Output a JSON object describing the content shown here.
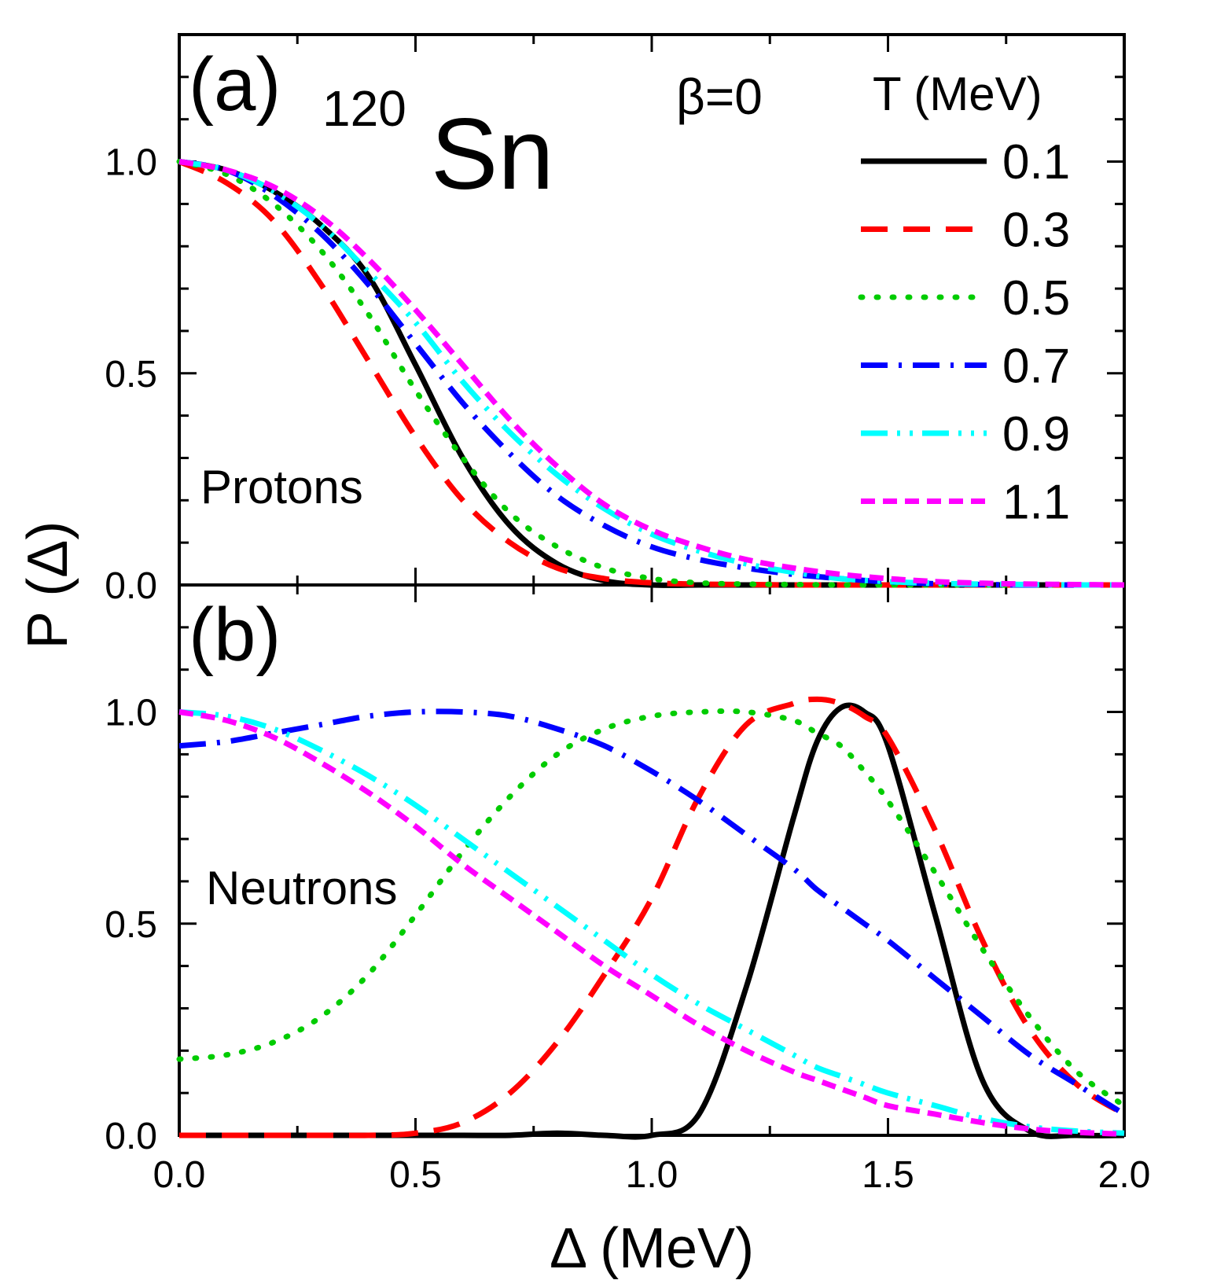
{
  "chart_data": [
    {
      "type": "line",
      "panel": "(a)",
      "label": "Protons",
      "nucleus_mass": "120",
      "nucleus_symbol": "Sn",
      "beta_label": "β=0",
      "legend_title": "T (MeV)",
      "xlim": [
        0.0,
        2.0
      ],
      "ylim": [
        0.0,
        1.3
      ],
      "yticks": [
        "0.0",
        "0.5",
        "1.0"
      ],
      "x": [
        0.0,
        0.1,
        0.2,
        0.3,
        0.4,
        0.5,
        0.6,
        0.7,
        0.8,
        0.9,
        1.0,
        1.1,
        1.2,
        1.3,
        1.4,
        1.5,
        1.6,
        1.7,
        1.8,
        1.9,
        2.0
      ],
      "series": [
        {
          "name": "0.1",
          "color": "#000000",
          "dash": "solid",
          "values": [
            1.0,
            0.98,
            0.93,
            0.85,
            0.73,
            0.52,
            0.3,
            0.14,
            0.05,
            0.01,
            0.0,
            0.0,
            0.0,
            0.0,
            0.0,
            0.0,
            0.0,
            0.0,
            0.0,
            0.0,
            0.0
          ]
        },
        {
          "name": "0.3",
          "color": "#ff0000",
          "dash": "dashed",
          "values": [
            1.0,
            0.95,
            0.86,
            0.71,
            0.53,
            0.35,
            0.2,
            0.1,
            0.04,
            0.015,
            0.005,
            0.002,
            0.001,
            0.0,
            0.0,
            0.0,
            0.0,
            0.0,
            0.0,
            0.0,
            0.0
          ]
        },
        {
          "name": "0.5",
          "color": "#00cc00",
          "dash": "dotted",
          "values": [
            1.0,
            0.97,
            0.9,
            0.79,
            0.64,
            0.46,
            0.3,
            0.17,
            0.09,
            0.04,
            0.015,
            0.005,
            0.002,
            0.001,
            0.0,
            0.0,
            0.0,
            0.0,
            0.0,
            0.0,
            0.0
          ]
        },
        {
          "name": "0.7",
          "color": "#0000ff",
          "dash": "dashdot",
          "values": [
            1.0,
            0.98,
            0.92,
            0.83,
            0.71,
            0.57,
            0.43,
            0.31,
            0.21,
            0.14,
            0.09,
            0.06,
            0.04,
            0.025,
            0.015,
            0.007,
            0.003,
            0.001,
            0.0,
            0.0,
            0.0
          ]
        },
        {
          "name": "0.9",
          "color": "#00ffff",
          "dash": "dashdotdot",
          "values": [
            1.0,
            0.98,
            0.93,
            0.85,
            0.74,
            0.62,
            0.48,
            0.36,
            0.26,
            0.18,
            0.12,
            0.08,
            0.05,
            0.03,
            0.015,
            0.008,
            0.004,
            0.002,
            0.001,
            0.0,
            0.0
          ]
        },
        {
          "name": "1.1",
          "color": "#ff00ff",
          "dash": "shortdash",
          "values": [
            1.0,
            0.98,
            0.94,
            0.87,
            0.77,
            0.65,
            0.52,
            0.39,
            0.28,
            0.19,
            0.13,
            0.09,
            0.06,
            0.04,
            0.025,
            0.015,
            0.008,
            0.004,
            0.002,
            0.001,
            0.0
          ]
        }
      ]
    },
    {
      "type": "line",
      "panel": "(b)",
      "label": "Neutrons",
      "xlabel": "Δ (MeV)",
      "ylabel": "P (Δ)",
      "xlim": [
        0.0,
        2.0
      ],
      "ylim": [
        0.0,
        1.3
      ],
      "xticks": [
        "0.0",
        "0.5",
        "1.0",
        "1.5",
        "2.0"
      ],
      "yticks": [
        "0.0",
        "0.5",
        "1.0"
      ],
      "x": [
        0.0,
        0.1,
        0.2,
        0.3,
        0.4,
        0.5,
        0.6,
        0.7,
        0.8,
        0.9,
        1.0,
        1.1,
        1.2,
        1.3,
        1.35,
        1.4,
        1.45,
        1.5,
        1.6,
        1.7,
        1.8,
        1.9,
        2.0
      ],
      "series": [
        {
          "name": "0.1",
          "color": "#000000",
          "dash": "solid",
          "values": [
            0.0,
            0.0,
            0.0,
            0.0,
            0.0,
            0.0,
            0.0,
            0.0,
            0.005,
            0.0,
            0.0,
            0.05,
            0.35,
            0.75,
            0.93,
            1.01,
            1.0,
            0.92,
            0.52,
            0.13,
            0.01,
            0.0,
            0.0
          ]
        },
        {
          "name": "0.3",
          "color": "#ff0000",
          "dash": "dashed",
          "values": [
            0.0,
            0.0,
            0.0,
            0.0,
            0.0,
            0.005,
            0.03,
            0.1,
            0.22,
            0.38,
            0.56,
            0.8,
            0.97,
            1.02,
            1.03,
            1.02,
            0.99,
            0.94,
            0.72,
            0.46,
            0.25,
            0.12,
            0.05
          ]
        },
        {
          "name": "0.5",
          "color": "#00cc00",
          "dash": "dotted",
          "values": [
            0.18,
            0.19,
            0.22,
            0.28,
            0.38,
            0.52,
            0.67,
            0.8,
            0.9,
            0.96,
            0.99,
            1.0,
            1.0,
            0.98,
            0.95,
            0.92,
            0.86,
            0.79,
            0.62,
            0.44,
            0.28,
            0.15,
            0.07
          ]
        },
        {
          "name": "0.7",
          "color": "#0000ff",
          "dash": "dashdot",
          "values": [
            0.92,
            0.93,
            0.95,
            0.97,
            0.99,
            1.0,
            1.0,
            0.99,
            0.96,
            0.92,
            0.86,
            0.79,
            0.71,
            0.63,
            0.58,
            0.54,
            0.5,
            0.46,
            0.37,
            0.28,
            0.19,
            0.12,
            0.05
          ]
        },
        {
          "name": "0.9",
          "color": "#00ffff",
          "dash": "dashdotdot",
          "values": [
            1.0,
            0.99,
            0.96,
            0.91,
            0.85,
            0.78,
            0.7,
            0.62,
            0.54,
            0.46,
            0.38,
            0.31,
            0.25,
            0.19,
            0.16,
            0.14,
            0.12,
            0.1,
            0.07,
            0.04,
            0.02,
            0.01,
            0.005
          ]
        },
        {
          "name": "1.1",
          "color": "#ff00ff",
          "dash": "shortdash",
          "values": [
            1.0,
            0.98,
            0.94,
            0.88,
            0.81,
            0.73,
            0.64,
            0.56,
            0.48,
            0.4,
            0.33,
            0.26,
            0.2,
            0.15,
            0.13,
            0.11,
            0.09,
            0.07,
            0.05,
            0.03,
            0.015,
            0.007,
            0.003
          ]
        }
      ]
    }
  ]
}
